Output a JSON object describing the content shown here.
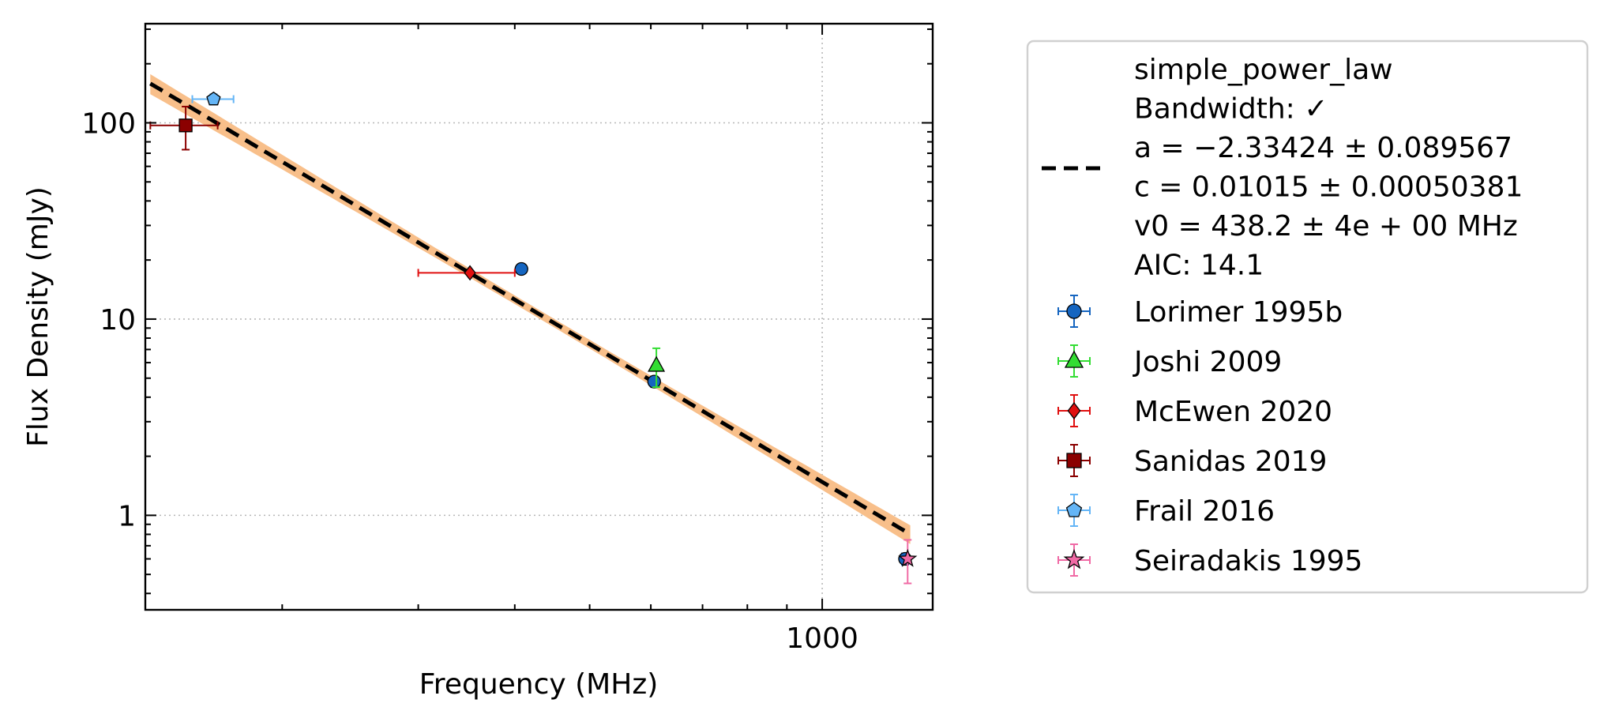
{
  "chart_data": {
    "type": "scatter",
    "xscale": "log",
    "yscale": "log",
    "xlim": [
      133,
      1390
    ],
    "ylim": [
      0.33,
      320
    ],
    "xlabel": "Frequency (MHz)",
    "ylabel": "Flux Density (mJy)",
    "x_ticks": [
      {
        "value": 1000,
        "label": "1000"
      }
    ],
    "y_ticks": [
      {
        "value": 1,
        "label": "1"
      },
      {
        "value": 10,
        "label": "10"
      },
      {
        "value": 100,
        "label": "100"
      }
    ],
    "grid": true,
    "legend_position": "right, outside",
    "fit": {
      "model": "simple_power_law",
      "legend_lines": [
        "simple_power_law",
        "Bandwidth: ✓",
        "a = −2.33424 ± 0.089567",
        "c = 0.01015 ± 0.00050381",
        "v0 = 438.2 ± 4e + 00 MHz",
        "AIC: 14.1"
      ],
      "a": -2.33424,
      "c": 0.01015,
      "v0": 438.2,
      "x_range": [
        135,
        1300
      ],
      "line_color": "#000000",
      "band_color": "#f8bf8a"
    },
    "series": [
      {
        "name": "Lorimer 1995b",
        "marker": "circle",
        "color": "#1565c0",
        "err_color": "#1565c0",
        "points": [
          {
            "x": 408,
            "y": 18,
            "yerr": 0.6,
            "xerr": 0
          },
          {
            "x": 606,
            "y": 4.8,
            "yerr": 0.3,
            "xerr": 0
          },
          {
            "x": 1280,
            "y": 0.6,
            "yerr": 0.04,
            "xerr": 0
          }
        ]
      },
      {
        "name": "Joshi 2009",
        "marker": "triangle",
        "color": "#33dd33",
        "err_color": "#33dd33",
        "points": [
          {
            "x": 610,
            "y": 5.8,
            "yerr": 1.3,
            "xerr": 0
          }
        ]
      },
      {
        "name": "McEwen 2020",
        "marker": "diamond",
        "color": "#e01010",
        "err_color": "#e01010",
        "points": [
          {
            "x": 350,
            "y": 17.2,
            "yerr": 0,
            "xerr": 50
          }
        ]
      },
      {
        "name": "Sanidas 2019",
        "marker": "square",
        "color": "#8b0000",
        "err_color": "#8b0000",
        "points": [
          {
            "x": 150,
            "y": 97,
            "yerr": 24,
            "xerr": 15
          }
        ]
      },
      {
        "name": "Frail 2016",
        "marker": "pentagon",
        "color": "#64b5f6",
        "err_color": "#64b5f6",
        "points": [
          {
            "x": 163,
            "y": 132,
            "yerr": 8,
            "xerr": 10
          }
        ]
      },
      {
        "name": "Seiradakis 1995",
        "marker": "star",
        "color": "#f06aa5",
        "err_color": "#f06aa5",
        "points": [
          {
            "x": 1290,
            "y": 0.6,
            "yerr": 0.15,
            "xerr": 0
          }
        ]
      }
    ]
  }
}
